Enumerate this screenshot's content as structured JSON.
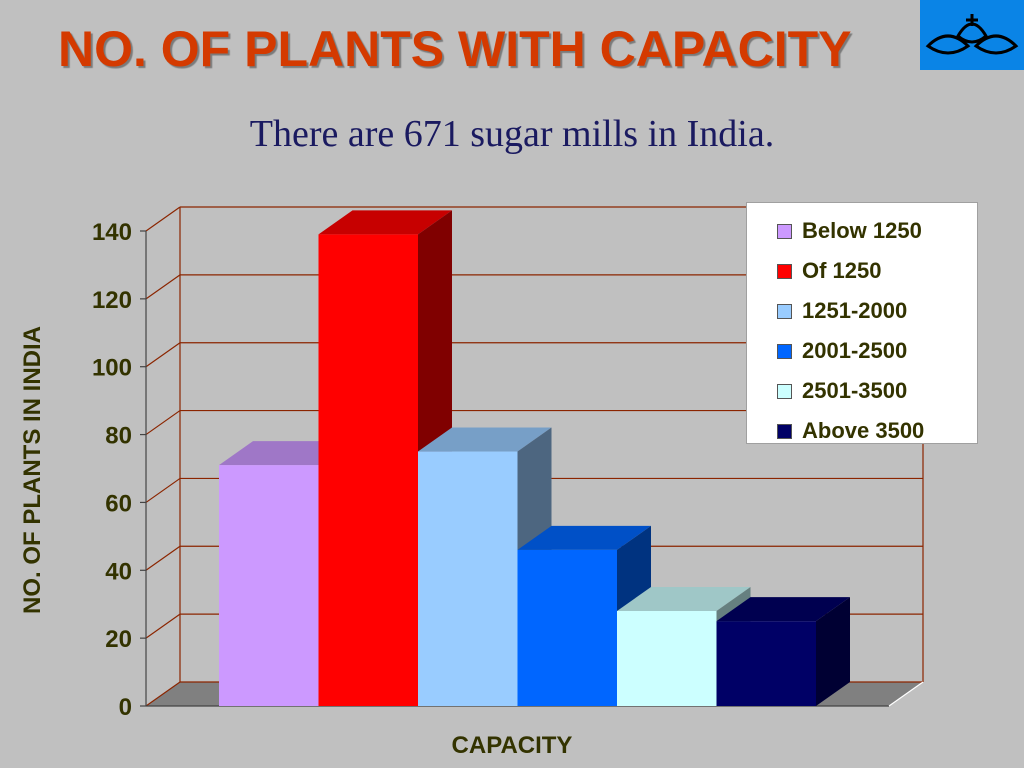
{
  "page": {
    "title": "NO. OF PLANTS WITH CAPACITY",
    "subtitle": "There are 671 sugar mills in India.",
    "logo_icon": "sugar-corporation-logo-icon",
    "logo_bg": "#0a84e6"
  },
  "chart_data": {
    "type": "bar",
    "style": "3d-column",
    "categories": [
      "Below 1250",
      "Of 1250",
      "1251-2000",
      "2001-2500",
      "2501-3500",
      "Above 3500"
    ],
    "values": [
      71,
      139,
      75,
      46,
      28,
      25
    ],
    "colors": [
      "#cc99ff",
      "#ff0000",
      "#99ccff",
      "#0066ff",
      "#ccffff",
      "#000066"
    ],
    "xlabel": "CAPACITY",
    "ylabel": "NO. OF PLANTS IN INDIA",
    "ylim": [
      0,
      140
    ],
    "yticks": [
      0,
      20,
      40,
      60,
      80,
      100,
      120,
      140
    ],
    "grid": true,
    "legend": "top-right"
  }
}
